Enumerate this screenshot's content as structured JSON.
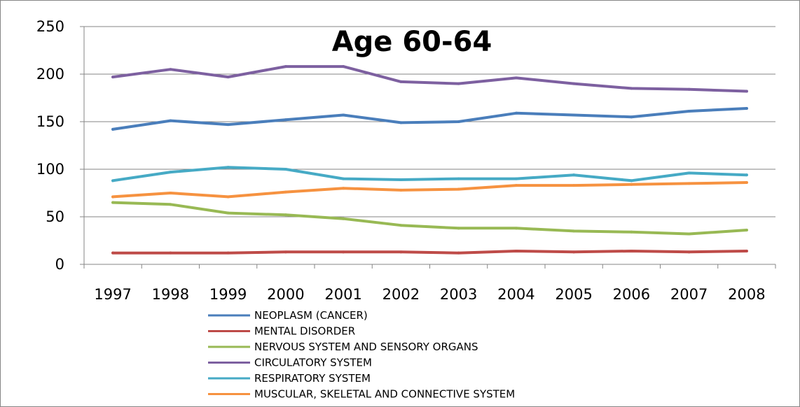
{
  "chart_data": {
    "type": "line",
    "title": "Age 60-64",
    "xlabel": "",
    "ylabel": "",
    "categories": [
      "1997",
      "1998",
      "1999",
      "2000",
      "2001",
      "2002",
      "2003",
      "2004",
      "2005",
      "2006",
      "2007",
      "2008"
    ],
    "ylim": [
      0,
      250
    ],
    "yticks": [
      "0",
      "50",
      "100",
      "150",
      "200",
      "250"
    ],
    "grid": true,
    "legend_position": "bottom",
    "series": [
      {
        "name": "NEOPLASM (CANCER)",
        "color": "#4a7ebb",
        "values": [
          142,
          151,
          147,
          152,
          157,
          149,
          150,
          159,
          157,
          155,
          161,
          164
        ]
      },
      {
        "name": "MENTAL DISORDER",
        "color": "#be4b48",
        "values": [
          12,
          12,
          12,
          13,
          13,
          13,
          12,
          14,
          13,
          14,
          13,
          14
        ]
      },
      {
        "name": "NERVOUS SYSTEM AND SENSORY ORGANS",
        "color": "#98b954",
        "values": [
          65,
          63,
          54,
          52,
          48,
          41,
          38,
          38,
          35,
          34,
          32,
          36
        ]
      },
      {
        "name": "CIRCULATORY SYSTEM",
        "color": "#7d60a0",
        "values": [
          197,
          205,
          197,
          208,
          208,
          192,
          190,
          196,
          190,
          185,
          184,
          182
        ]
      },
      {
        "name": "RESPIRATORY SYSTEM",
        "color": "#46aac5",
        "values": [
          88,
          97,
          102,
          100,
          90,
          89,
          90,
          90,
          94,
          88,
          96,
          94
        ]
      },
      {
        "name": "MUSCULAR, SKELETAL AND CONNECTIVE SYSTEM",
        "color": "#f69240",
        "values": [
          71,
          75,
          71,
          76,
          80,
          78,
          79,
          83,
          83,
          84,
          85,
          86
        ]
      }
    ]
  }
}
